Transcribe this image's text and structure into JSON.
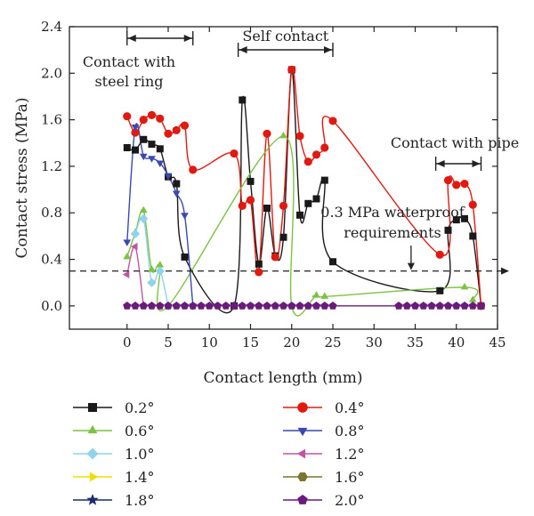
{
  "chart_data": {
    "type": "line",
    "xlabel": "Contact length (mm)",
    "ylabel": "Contact stress (MPa)",
    "xlim": [
      -7,
      45
    ],
    "ylim": [
      -0.2,
      2.4
    ],
    "xticks": [
      0,
      5,
      10,
      15,
      20,
      25,
      30,
      35,
      40,
      45
    ],
    "yticks": [
      0.0,
      0.4,
      0.8,
      1.2,
      1.6,
      2.0,
      2.4
    ],
    "xtick_labels": [
      "0",
      "5",
      "10",
      "15",
      "20",
      "25",
      "30",
      "35",
      "40",
      "45"
    ],
    "ytick_labels": [
      "0.0",
      "0.4",
      "0.8",
      "1.2",
      "1.6",
      "2.0",
      "2.4"
    ],
    "threshold": {
      "value": 0.3,
      "style": "dashed"
    },
    "annotations": [
      {
        "lines": [
          "Contact with",
          "steel ring"
        ],
        "span": [
          0,
          8
        ]
      },
      {
        "lines": [
          "Self contact"
        ],
        "span": [
          13.5,
          25
        ]
      },
      {
        "lines": [
          "Contact with pipe"
        ],
        "span": [
          37.5,
          43
        ]
      },
      {
        "lines": [
          "0.3 MPa waterproof",
          "requirements"
        ],
        "arrow_x": 34.5
      }
    ],
    "legend_position": "bottom",
    "series": [
      {
        "name": "0.2°",
        "color": "#1a1a1a",
        "marker": "square",
        "curve_color": "#1a1a1a",
        "x": [
          0,
          1,
          2,
          3,
          4,
          5,
          6,
          7,
          13,
          14,
          15,
          16,
          17,
          18,
          19,
          20,
          21,
          22,
          23,
          24,
          25,
          38,
          39,
          40,
          41,
          42,
          43
        ],
        "y": [
          1.36,
          1.34,
          1.43,
          1.39,
          1.35,
          1.11,
          1.05,
          0.42,
          0.0,
          1.77,
          1.07,
          0.36,
          0.84,
          0.43,
          0.59,
          2.03,
          0.78,
          0.88,
          0.92,
          1.08,
          0.38,
          0.13,
          0.65,
          0.74,
          0.75,
          0.6,
          0.0
        ]
      },
      {
        "name": "0.4°",
        "color": "#e01a10",
        "marker": "circle",
        "curve_color": "#e01a10",
        "x": [
          0,
          1,
          2,
          3,
          4,
          5,
          6,
          7,
          8,
          13,
          14,
          15,
          16,
          17,
          18,
          19,
          20,
          21,
          22,
          23,
          24,
          25,
          38,
          39,
          40,
          41,
          42,
          43
        ],
        "y": [
          1.63,
          1.49,
          1.6,
          1.64,
          1.61,
          1.48,
          1.51,
          1.55,
          1.17,
          1.31,
          0.86,
          0.91,
          0.29,
          1.48,
          0.42,
          0.86,
          2.03,
          1.46,
          1.24,
          1.3,
          1.36,
          1.59,
          0.44,
          1.08,
          1.04,
          1.05,
          0.87,
          0.0
        ]
      },
      {
        "name": "0.6°",
        "color": "#7cc243",
        "marker": "triangle-up",
        "curve_color": "#7cc243",
        "x": [
          0,
          1,
          2,
          3,
          4,
          5,
          19,
          20,
          23,
          24,
          41,
          42
        ],
        "y": [
          0.42,
          0.63,
          0.82,
          0.31,
          0.35,
          0.0,
          1.46,
          0.0,
          0.09,
          0.08,
          0.16,
          0.05
        ]
      },
      {
        "name": "0.8°",
        "color": "#3949b0",
        "marker": "triangle-down",
        "curve_color": "#3949b0",
        "x": [
          0,
          1,
          2,
          3,
          4,
          5,
          6,
          7,
          8
        ],
        "y": [
          0.55,
          1.54,
          1.29,
          1.27,
          1.23,
          1.12,
          0.97,
          0.78,
          0.0
        ]
      },
      {
        "name": "1.0°",
        "color": "#8fd3ec",
        "marker": "diamond",
        "curve_color": "#8fd3ec",
        "x": [
          1,
          2,
          3,
          4,
          5
        ],
        "y": [
          0.62,
          0.75,
          0.2,
          0.3,
          0.0
        ]
      },
      {
        "name": "1.2°",
        "color": "#c055a8",
        "marker": "triangle-left",
        "curve_color": "#c055a8",
        "x": [
          0,
          1,
          2
        ],
        "y": [
          0.27,
          0.51,
          0.0
        ]
      },
      {
        "name": "1.4°",
        "color": "#f0e000",
        "marker": "triangle-right",
        "curve_color": "#f0e000",
        "x": [],
        "y": []
      },
      {
        "name": "1.6°",
        "color": "#7a7530",
        "marker": "hexagon",
        "curve_color": "#7a7530",
        "x": [],
        "y": []
      },
      {
        "name": "1.8°",
        "color": "#1a2a6a",
        "marker": "star",
        "curve_color": "#1a2a6a",
        "x": [],
        "y": []
      },
      {
        "name": "2.0°",
        "color": "#6a1a7a",
        "marker": "pentagon",
        "curve_color": "#6a1a7a",
        "x": [
          0,
          1,
          2,
          3,
          4,
          5,
          6,
          7,
          8,
          9,
          10,
          11,
          12,
          13,
          14,
          15,
          16,
          17,
          18,
          19,
          20,
          21,
          22,
          23,
          24,
          25,
          33,
          34,
          35,
          36,
          37,
          38,
          39,
          40,
          41,
          42,
          43
        ],
        "y": [
          0,
          0,
          0,
          0,
          0,
          0,
          0,
          0,
          0,
          0,
          0,
          0,
          0,
          0,
          0,
          0,
          0,
          0,
          0,
          0,
          0,
          0,
          0,
          0,
          0,
          0,
          0,
          0,
          0,
          0,
          0,
          0,
          0,
          0,
          0,
          0,
          0
        ]
      }
    ]
  }
}
